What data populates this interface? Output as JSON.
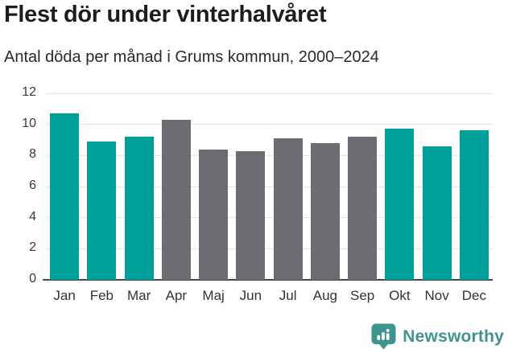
{
  "chart_data": {
    "type": "bar",
    "title": "Flest dör under vinterhalvåret",
    "subtitle": "Antal döda per månad i Grums kommun, 2000–2024",
    "categories": [
      "Jan",
      "Feb",
      "Mar",
      "Apr",
      "Maj",
      "Jun",
      "Jul",
      "Aug",
      "Sep",
      "Okt",
      "Nov",
      "Dec"
    ],
    "values": [
      10.7,
      8.9,
      9.2,
      10.3,
      8.4,
      8.3,
      9.1,
      8.8,
      9.2,
      9.7,
      8.6,
      9.6
    ],
    "bar_groups": [
      "winter",
      "winter",
      "winter",
      "summer",
      "summer",
      "summer",
      "summer",
      "summer",
      "summer",
      "winter",
      "winter",
      "winter"
    ],
    "xlabel": "",
    "ylabel": "",
    "ylim": [
      0,
      12
    ],
    "yticks": [
      0,
      2,
      4,
      6,
      8,
      10,
      12
    ],
    "grid": true,
    "legend": false
  },
  "colors": {
    "bar_winter": "#00a09a",
    "bar_summer": "#6e6b72",
    "gridline": "#e3e3e3",
    "axisline": "#47474a",
    "tick_text": "#3a3a3a",
    "brand": "#3f948e"
  },
  "footer": {
    "brand": "Newsworthy",
    "logo_icon": "bar-chart-speech-bubble-icon"
  }
}
